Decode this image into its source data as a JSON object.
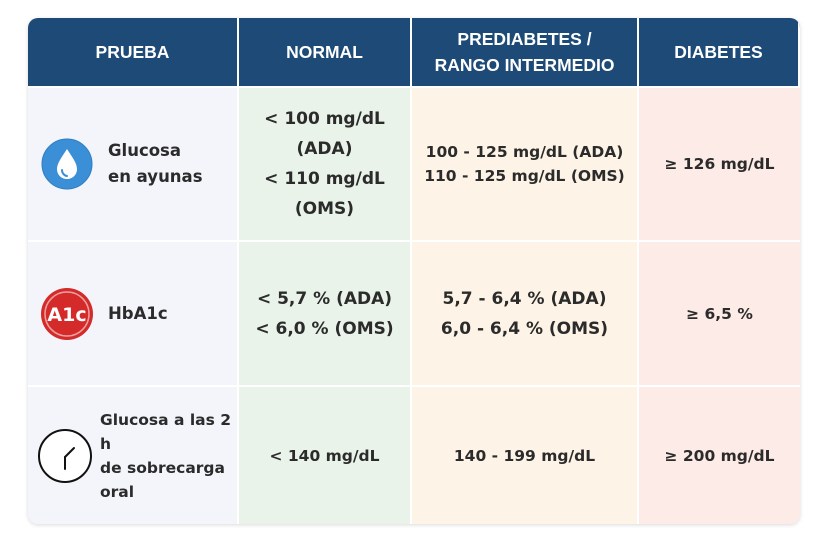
{
  "table": {
    "headers": [
      {
        "lines": [
          "PRUEBA"
        ]
      },
      {
        "lines": [
          "NORMAL"
        ]
      },
      {
        "lines": [
          "PREDIABETES /",
          "RANGO INTERMEDIO"
        ]
      },
      {
        "lines": [
          "DIABETES"
        ]
      }
    ],
    "rows": [
      {
        "test": {
          "icon": "water-drop-icon",
          "lines": [
            "Glucosa",
            "en ayunas"
          ]
        },
        "normal": [
          "< 100 mg/dL",
          "(ADA)",
          "< 110 mg/dL",
          "(OMS)"
        ],
        "prediabetes": [
          "100 - 125 mg/dL (ADA)",
          "110 - 125 mg/dL (OMS)"
        ],
        "diabetes": [
          "≥ 126 mg/dL"
        ]
      },
      {
        "test": {
          "icon": "a1c-badge-icon",
          "badge_text": "A1c",
          "lines": [
            "HbA1c"
          ]
        },
        "normal": [
          "< 5,7 % (ADA)",
          "< 6,0 % (OMS)"
        ],
        "prediabetes": [
          "5,7 - 6,4 % (ADA)",
          "6,0 - 6,4 % (OMS)"
        ],
        "diabetes": [
          "≥ 6,5 %"
        ]
      },
      {
        "test": {
          "icon": "clock-icon",
          "lines": [
            "Glucosa a las 2 h",
            "de sobrecarga",
            "oral"
          ]
        },
        "normal": [
          "< 140 mg/dL"
        ],
        "prediabetes": [
          "140 - 199 mg/dL"
        ],
        "diabetes": [
          "≥ 200 mg/dL"
        ]
      }
    ]
  },
  "colors": {
    "header_bg": "#1d4a77",
    "normal_bg": "#e9f3ea",
    "prediabetes_bg": "#fdf3e6",
    "diabetes_bg": "#fcebe6",
    "drop_blue": "#3b8fd6",
    "badge_red": "#d42a2a"
  }
}
